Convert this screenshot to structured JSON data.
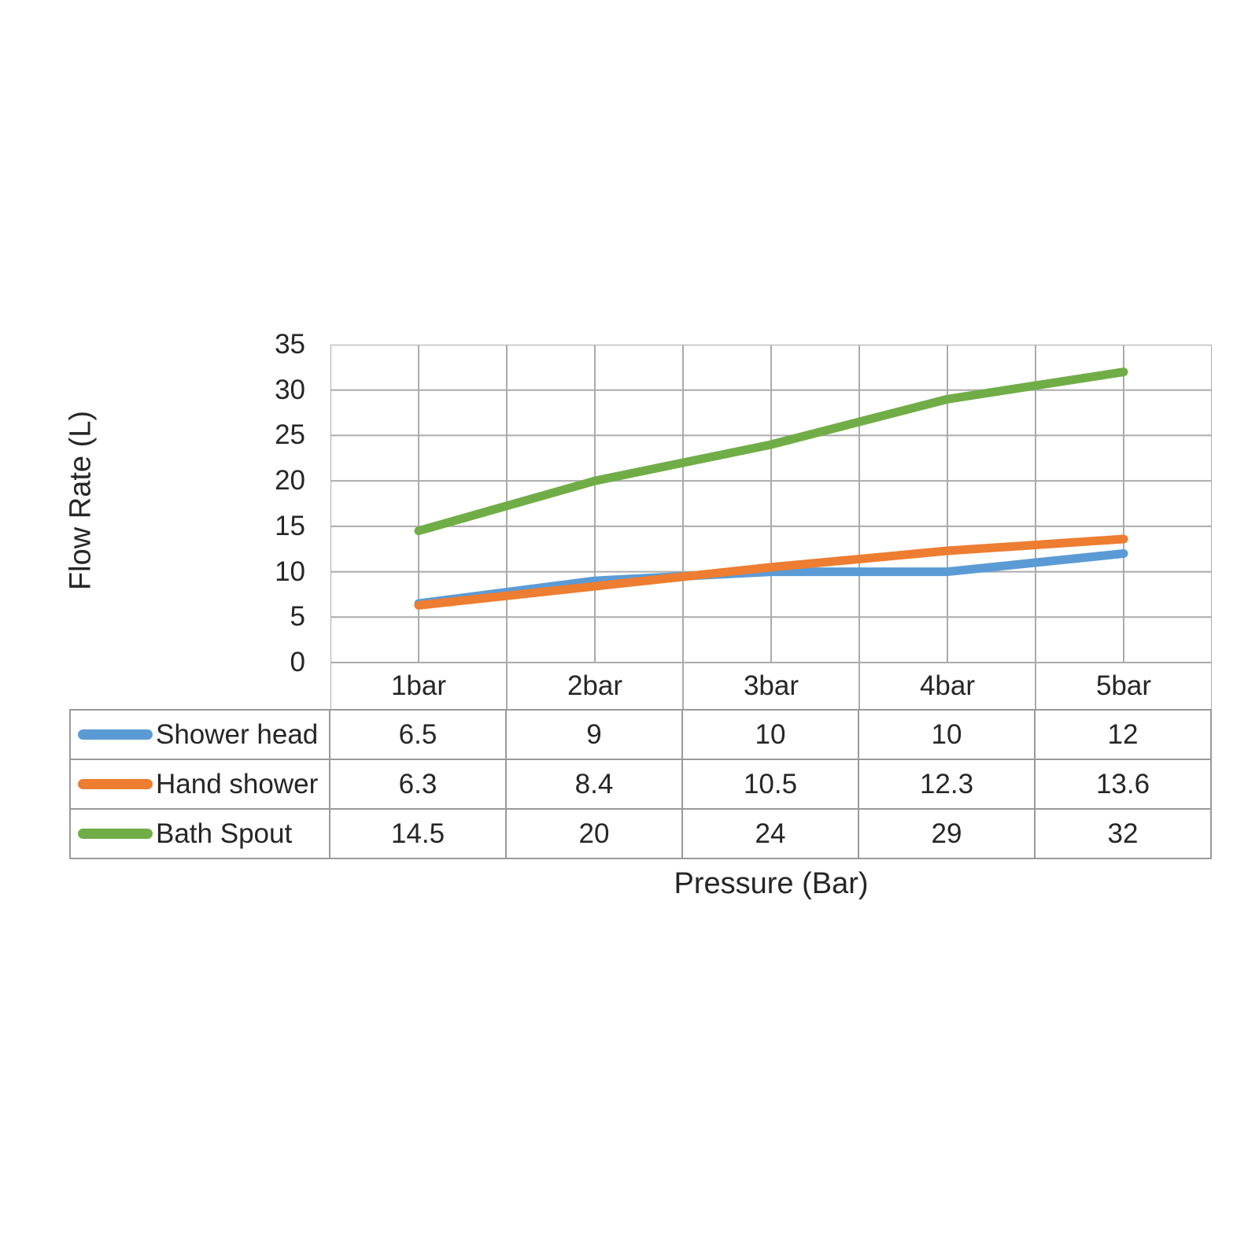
{
  "chart_data": {
    "type": "line",
    "title": "",
    "xlabel": "Pressure (Bar)",
    "ylabel": "Flow Rate (L)",
    "categories": [
      "1bar",
      "2bar",
      "3bar",
      "4bar",
      "5bar"
    ],
    "series": [
      {
        "name": "Shower head",
        "color": "#5B9BD5",
        "values": [
          6.5,
          9,
          10,
          10,
          12
        ]
      },
      {
        "name": "Hand shower",
        "color": "#ED7D31",
        "values": [
          6.3,
          8.4,
          10.5,
          12.3,
          13.6
        ]
      },
      {
        "name": "Bath Spout",
        "color": "#70AD47",
        "values": [
          14.5,
          20,
          24,
          29,
          32
        ]
      }
    ],
    "ylim": [
      0,
      35
    ],
    "yticks": [
      0,
      5,
      10,
      15,
      20,
      25,
      30,
      35
    ],
    "grid": "both",
    "legend_position": "table-left",
    "gridline_color": "#ababab",
    "table_border_color": "#9a9a9a",
    "text_color": "#262626",
    "background_color": "#ffffff"
  }
}
